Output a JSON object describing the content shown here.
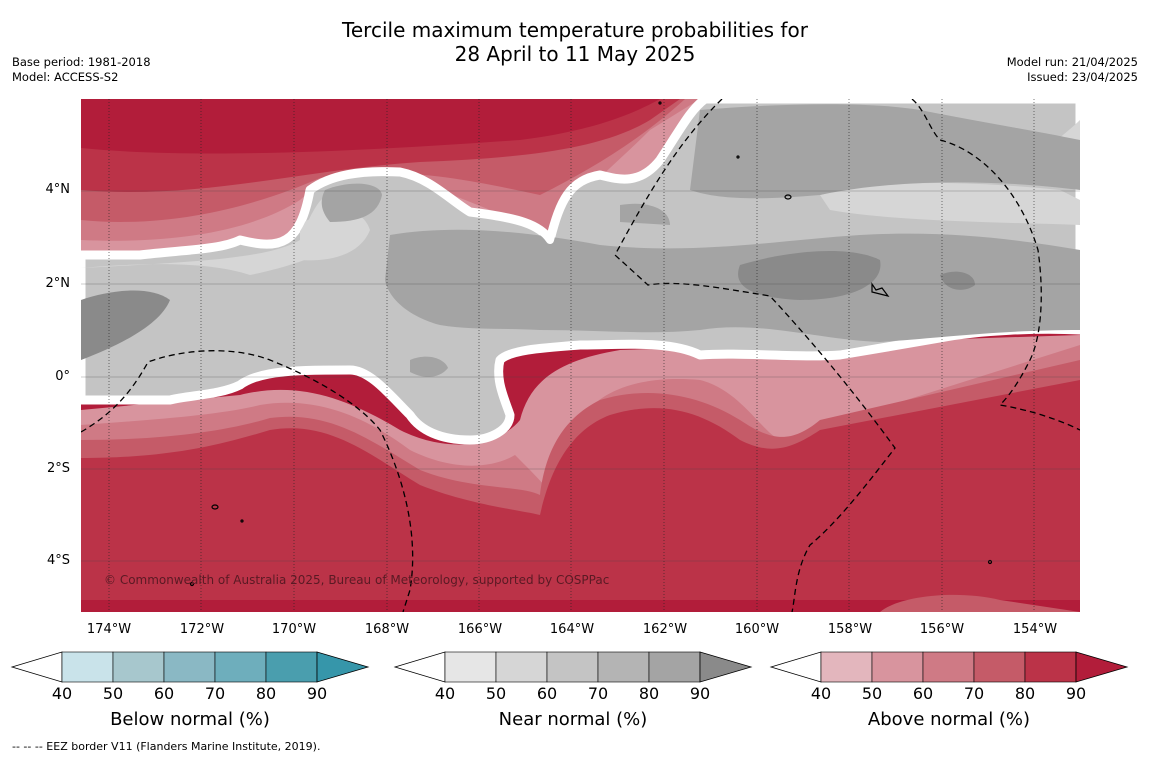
{
  "title": {
    "line1": "Tercile maximum temperature probabilities for",
    "line2": "28 April to 11 May 2025"
  },
  "meta_left": {
    "base_period": "Base period: 1981-2018",
    "model": "Model: ACCESS-S2"
  },
  "meta_right": {
    "model_run": "Model run: 21/04/2025",
    "issued": "Issued: 23/04/2025"
  },
  "lat_ticks": [
    "4°N",
    "2°N",
    "0°",
    "2°S",
    "4°S"
  ],
  "lon_ticks": [
    "174°W",
    "172°W",
    "170°W",
    "168°W",
    "166°W",
    "164°W",
    "162°W",
    "160°W",
    "158°W",
    "156°W",
    "154°W"
  ],
  "credit": "© Commonwealth of Australia 2025, Bureau of Meteorology, supported by COSPPac",
  "eez_note": "--  --  -- EEZ border V11 (Flanders Marine Institute, 2019).",
  "colorbars": [
    {
      "label": "Below normal (%)",
      "ticks": [
        "40",
        "50",
        "60",
        "70",
        "80",
        "90"
      ],
      "colors": [
        "#c9e3ea",
        "#a7c7cd",
        "#8ab8c4",
        "#6eaebc",
        "#4a9eae",
        "#3696aa"
      ]
    },
    {
      "label": "Near normal (%)",
      "ticks": [
        "40",
        "50",
        "60",
        "70",
        "80",
        "90"
      ],
      "colors": [
        "#e6e6e6",
        "#d6d6d6",
        "#c4c4c4",
        "#b4b4b4",
        "#a4a4a4",
        "#8a8a8a"
      ]
    },
    {
      "label": "Above normal (%)",
      "ticks": [
        "40",
        "50",
        "60",
        "70",
        "80",
        "90"
      ],
      "colors": [
        "#e3b6bd",
        "#d8949e",
        "#cf7a85",
        "#c55b68",
        "#bb3348",
        "#b21d3a"
      ]
    }
  ]
}
